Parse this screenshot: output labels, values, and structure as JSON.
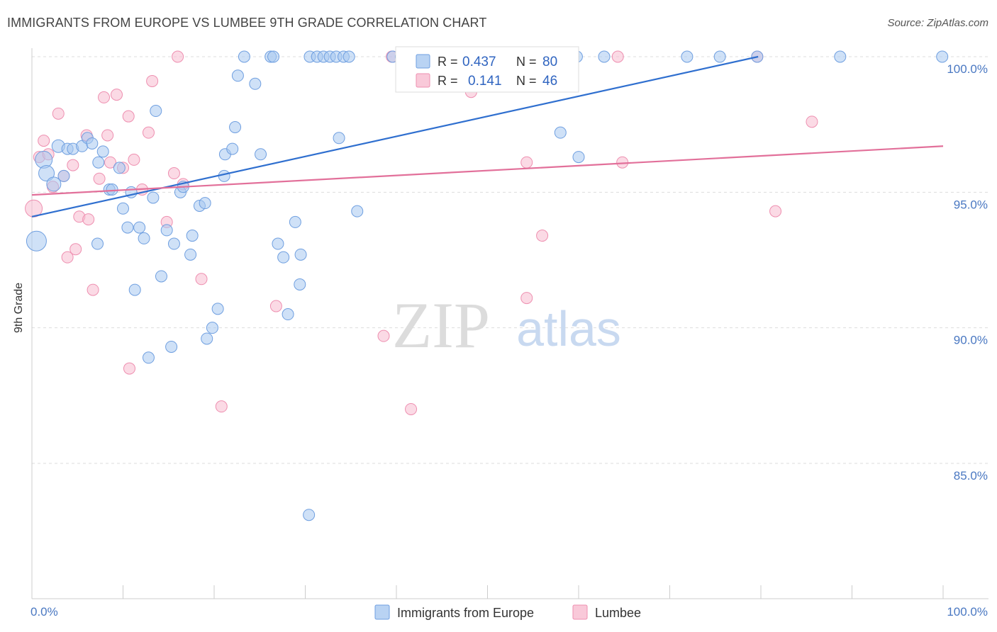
{
  "title": "IMMIGRANTS FROM EUROPE VS LUMBEE 9TH GRADE CORRELATION CHART",
  "source": "Source: ZipAtlas.com",
  "watermark": {
    "zip": "ZIP",
    "atlas": "atlas"
  },
  "colors": {
    "blue_fill": "#a8c8f0",
    "blue_stroke": "#6f9fe0",
    "blue_line": "#2f6fcf",
    "pink_fill": "#f7bcd0",
    "pink_stroke": "#ee8fb0",
    "pink_line": "#e2709a",
    "tick_label": "#4a78c2",
    "grid": "#dddddd"
  },
  "legend_top": {
    "rows": [
      {
        "r_label": "R =",
        "r_value": "0.437",
        "n_label": "N =",
        "n_value": "80",
        "color": "blue"
      },
      {
        "r_label": "R =",
        "r_value": "0.141",
        "n_label": "N =",
        "n_value": "46",
        "color": "pink"
      }
    ]
  },
  "legend_bottom": [
    {
      "label": "Immigrants from Europe",
      "color": "blue"
    },
    {
      "label": "Lumbee",
      "color": "pink"
    }
  ],
  "chart_data": {
    "type": "scatter",
    "title": "IMMIGRANTS FROM EUROPE VS LUMBEE 9TH GRADE CORRELATION CHART",
    "xlabel": "",
    "ylabel": "9th Grade",
    "xlim": [
      0,
      100
    ],
    "ylim": [
      80.8,
      100.8
    ],
    "x_tick_labels": [
      {
        "value": 0,
        "label": "0.0%"
      },
      {
        "value": 100,
        "label": "100.0%"
      }
    ],
    "y_tick_labels": [
      {
        "value": 100,
        "label": "100.0%"
      },
      {
        "value": 95,
        "label": "95.0%"
      },
      {
        "value": 90,
        "label": "90.0%"
      },
      {
        "value": 85,
        "label": "85.0%"
      }
    ],
    "x_minor_ticks": [
      10,
      20,
      30,
      40,
      50,
      60,
      70,
      80,
      90,
      100
    ],
    "grid": true,
    "legend_position": "top-center",
    "series": [
      {
        "name": "Immigrants from Europe",
        "color": "blue",
        "trend": {
          "x": [
            0,
            79.7
          ],
          "y": [
            94.1,
            100.0
          ]
        },
        "points": [
          [
            0.5,
            93.2,
            28
          ],
          [
            1.3,
            96.2,
            24
          ],
          [
            1.6,
            95.7,
            22
          ],
          [
            2.4,
            95.3,
            20
          ],
          [
            2.9,
            96.7,
            18
          ],
          [
            3.5,
            95.6,
            16
          ],
          [
            3.9,
            96.6,
            16
          ],
          [
            4.5,
            96.6,
            16
          ],
          [
            5.5,
            96.7,
            16
          ],
          [
            6.1,
            97.0,
            16
          ],
          [
            6.6,
            96.8,
            16
          ],
          [
            7.2,
            93.1,
            16
          ],
          [
            7.3,
            96.1,
            16
          ],
          [
            7.8,
            96.5,
            16
          ],
          [
            8.5,
            95.1,
            16
          ],
          [
            8.8,
            95.1,
            16
          ],
          [
            9.6,
            95.9,
            16
          ],
          [
            10.0,
            94.4,
            16
          ],
          [
            10.5,
            93.7,
            16
          ],
          [
            10.9,
            95.0,
            16
          ],
          [
            11.3,
            91.4,
            16
          ],
          [
            11.8,
            93.7,
            16
          ],
          [
            12.3,
            93.3,
            16
          ],
          [
            12.8,
            88.9,
            16
          ],
          [
            13.3,
            94.8,
            16
          ],
          [
            13.6,
            98.0,
            16
          ],
          [
            14.2,
            91.9,
            16
          ],
          [
            14.8,
            93.6,
            16
          ],
          [
            15.3,
            89.3,
            16
          ],
          [
            15.6,
            93.1,
            16
          ],
          [
            16.3,
            95.0,
            16
          ],
          [
            16.6,
            95.2,
            16
          ],
          [
            17.4,
            92.7,
            16
          ],
          [
            17.6,
            93.4,
            16
          ],
          [
            18.4,
            94.5,
            16
          ],
          [
            19.0,
            94.6,
            16
          ],
          [
            19.2,
            89.6,
            16
          ],
          [
            19.8,
            90.0,
            16
          ],
          [
            20.4,
            90.7,
            16
          ],
          [
            21.1,
            95.6,
            16
          ],
          [
            21.2,
            96.4,
            16
          ],
          [
            22.0,
            96.6,
            16
          ],
          [
            22.3,
            97.4,
            16
          ],
          [
            22.6,
            99.3,
            16
          ],
          [
            23.3,
            100.0,
            16
          ],
          [
            24.5,
            99.0,
            16
          ],
          [
            25.1,
            96.4,
            16
          ],
          [
            26.2,
            100.0,
            16
          ],
          [
            26.5,
            100.0,
            16
          ],
          [
            27.0,
            93.1,
            16
          ],
          [
            27.6,
            92.6,
            16
          ],
          [
            28.1,
            90.5,
            16
          ],
          [
            28.9,
            93.9,
            16
          ],
          [
            29.4,
            91.6,
            16
          ],
          [
            29.5,
            92.7,
            16
          ],
          [
            30.4,
            83.1,
            16
          ],
          [
            30.5,
            100.0,
            16
          ],
          [
            31.3,
            100.0,
            16
          ],
          [
            32.0,
            100.0,
            16
          ],
          [
            32.7,
            100.0,
            16
          ],
          [
            33.4,
            100.0,
            16
          ],
          [
            33.7,
            97.0,
            16
          ],
          [
            34.2,
            100.0,
            16
          ],
          [
            34.8,
            100.0,
            16
          ],
          [
            35.7,
            94.3,
            16
          ],
          [
            39.6,
            100.0,
            16
          ],
          [
            40.5,
            100.0,
            16
          ],
          [
            47.8,
            100.0,
            16
          ],
          [
            50.5,
            100.0,
            16
          ],
          [
            53.3,
            100.0,
            16
          ],
          [
            56.4,
            100.0,
            16
          ],
          [
            58.0,
            97.2,
            16
          ],
          [
            59.8,
            100.0,
            16
          ],
          [
            60.0,
            96.3,
            16
          ],
          [
            62.8,
            100.0,
            16
          ],
          [
            71.9,
            100.0,
            16
          ],
          [
            75.5,
            100.0,
            16
          ],
          [
            88.7,
            100.0,
            16
          ],
          [
            99.9,
            100.0,
            16
          ],
          [
            79.6,
            100.0,
            16
          ]
        ]
      },
      {
        "name": "Lumbee",
        "color": "pink",
        "trend": {
          "x": [
            0,
            100
          ],
          "y": [
            94.9,
            96.7
          ]
        },
        "points": [
          [
            0.2,
            94.4,
            24
          ],
          [
            0.8,
            96.3,
            16
          ],
          [
            1.3,
            96.9,
            16
          ],
          [
            1.8,
            96.4,
            16
          ],
          [
            2.3,
            95.2,
            16
          ],
          [
            2.9,
            97.9,
            16
          ],
          [
            3.5,
            95.6,
            16
          ],
          [
            3.9,
            92.6,
            16
          ],
          [
            4.5,
            96.0,
            16
          ],
          [
            4.8,
            92.9,
            16
          ],
          [
            5.2,
            94.1,
            16
          ],
          [
            6.0,
            97.1,
            16
          ],
          [
            6.2,
            94.0,
            16
          ],
          [
            6.7,
            91.4,
            16
          ],
          [
            7.4,
            95.5,
            16
          ],
          [
            7.9,
            98.5,
            16
          ],
          [
            8.3,
            97.1,
            16
          ],
          [
            8.6,
            96.1,
            16
          ],
          [
            9.3,
            98.6,
            16
          ],
          [
            10.0,
            95.9,
            16
          ],
          [
            10.6,
            97.8,
            16
          ],
          [
            10.7,
            88.5,
            16
          ],
          [
            11.2,
            96.2,
            16
          ],
          [
            12.1,
            95.1,
            16
          ],
          [
            12.8,
            97.2,
            16
          ],
          [
            13.2,
            99.1,
            16
          ],
          [
            14.8,
            93.9,
            16
          ],
          [
            15.6,
            95.7,
            16
          ],
          [
            16.0,
            100.0,
            16
          ],
          [
            16.6,
            95.3,
            16
          ],
          [
            18.6,
            91.8,
            16
          ],
          [
            20.8,
            87.1,
            16
          ],
          [
            26.8,
            90.8,
            16
          ],
          [
            38.6,
            89.7,
            16
          ],
          [
            39.5,
            100.0,
            16
          ],
          [
            41.6,
            87.0,
            16
          ],
          [
            44.0,
            100.0,
            16
          ],
          [
            48.2,
            98.7,
            16
          ],
          [
            54.3,
            91.1,
            16
          ],
          [
            54.3,
            96.1,
            16
          ],
          [
            56.0,
            93.4,
            16
          ],
          [
            64.3,
            100.0,
            16
          ],
          [
            64.8,
            96.1,
            16
          ],
          [
            79.6,
            100.0,
            16
          ],
          [
            81.6,
            94.3,
            16
          ],
          [
            85.6,
            97.6,
            16
          ]
        ]
      }
    ]
  }
}
